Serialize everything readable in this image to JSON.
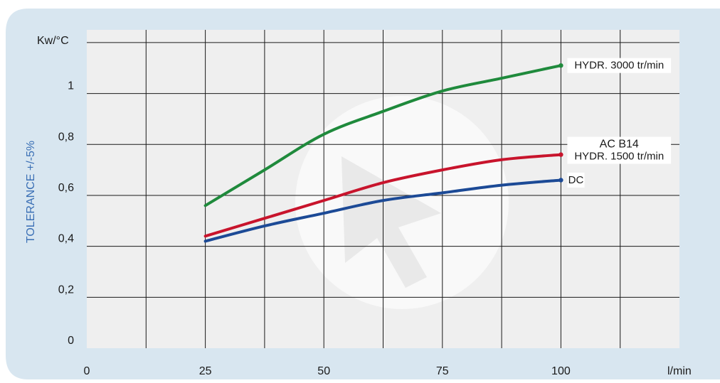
{
  "chart_data": {
    "type": "line",
    "y_unit_label": "Kw/°C",
    "x_unit_label": "l/min",
    "ylabel": "TOLERANCE +/-5%",
    "xlim": [
      0,
      125
    ],
    "ylim": [
      0,
      1.25
    ],
    "x_ticks": [
      {
        "value": 0,
        "label": "0"
      },
      {
        "value": 25,
        "label": "25"
      },
      {
        "value": 50,
        "label": "50"
      },
      {
        "value": 75,
        "label": "75"
      },
      {
        "value": 100,
        "label": "100"
      }
    ],
    "y_ticks": [
      {
        "value": 0,
        "label": "0"
      },
      {
        "value": 0.2,
        "label": "0,2"
      },
      {
        "value": 0.4,
        "label": "0,4"
      },
      {
        "value": 0.6,
        "label": "0,6"
      },
      {
        "value": 0.8,
        "label": "0,8"
      },
      {
        "value": 1.0,
        "label": "1"
      }
    ],
    "grid": true,
    "series": [
      {
        "name": "HYDR. 3000 tr/min",
        "labels": [
          "HYDR. 3000 tr/min"
        ],
        "color": "#1f8a3c",
        "x": [
          25,
          37.5,
          50,
          62.5,
          75,
          87.5,
          100
        ],
        "y": [
          0.56,
          0.7,
          0.84,
          0.93,
          1.01,
          1.06,
          1.11
        ]
      },
      {
        "name": "AC B14 / HYDR. 1500 tr/min",
        "labels": [
          "AC B14",
          "HYDR. 1500 tr/min"
        ],
        "color": "#c8142c",
        "x": [
          25,
          37.5,
          50,
          62.5,
          75,
          87.5,
          100
        ],
        "y": [
          0.44,
          0.51,
          0.58,
          0.65,
          0.7,
          0.74,
          0.76
        ]
      },
      {
        "name": "DC",
        "labels": [
          "DC"
        ],
        "color": "#1c4a96",
        "x": [
          25,
          37.5,
          50,
          62.5,
          75,
          87.5,
          100
        ],
        "y": [
          0.42,
          0.48,
          0.53,
          0.58,
          0.61,
          0.64,
          0.66
        ]
      }
    ]
  },
  "colors": {
    "panel_background": "#d8e6f0",
    "plot_background": "#efefef",
    "grid": "#1a1a1a",
    "ylabel_text": "#3a6fb5",
    "watermark": "#ffffff"
  },
  "watermark_icon": "emmegi-heat-exchangers-logo"
}
